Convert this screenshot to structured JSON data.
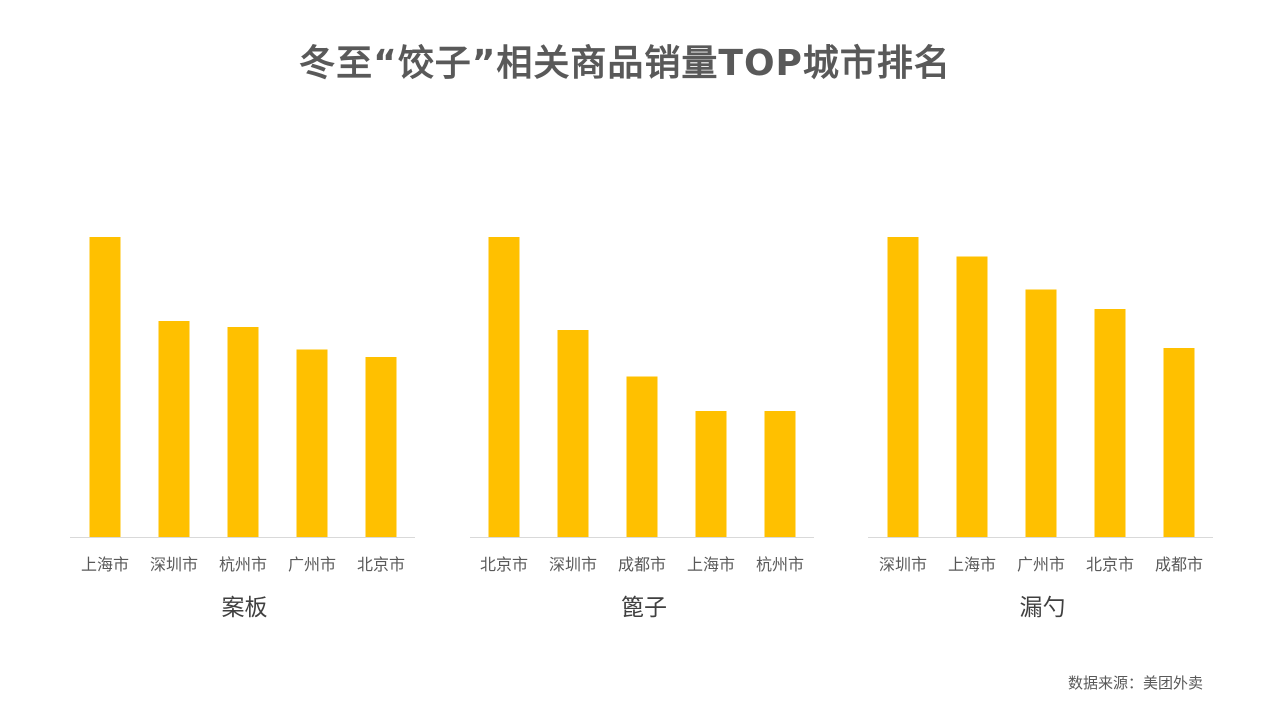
{
  "title": "冬至“饺子”相关商品销量TOP城市排名",
  "source": "数据来源：美团外卖",
  "colors": {
    "bar": "#FFC000",
    "axis": "#D9D9D9",
    "text": "#595959"
  },
  "chart_data": [
    {
      "type": "bar",
      "xlabel": "案板",
      "categories": [
        "上海市",
        "深圳市",
        "杭州市",
        "广州市",
        "北京市"
      ],
      "values": [
        100,
        72,
        70,
        62.5,
        60
      ],
      "ylim": [
        0,
        100
      ]
    },
    {
      "type": "bar",
      "xlabel": "篦子",
      "categories": [
        "北京市",
        "深圳市",
        "成都市",
        "上海市",
        "杭州市"
      ],
      "values": [
        100,
        69,
        53.5,
        42,
        42
      ],
      "ylim": [
        0,
        100
      ]
    },
    {
      "type": "bar",
      "xlabel": "漏勺",
      "categories": [
        "深圳市",
        "上海市",
        "广州市",
        "北京市",
        "成都市"
      ],
      "values": [
        100,
        93.5,
        82.5,
        76,
        63
      ],
      "ylim": [
        0,
        100
      ]
    }
  ]
}
